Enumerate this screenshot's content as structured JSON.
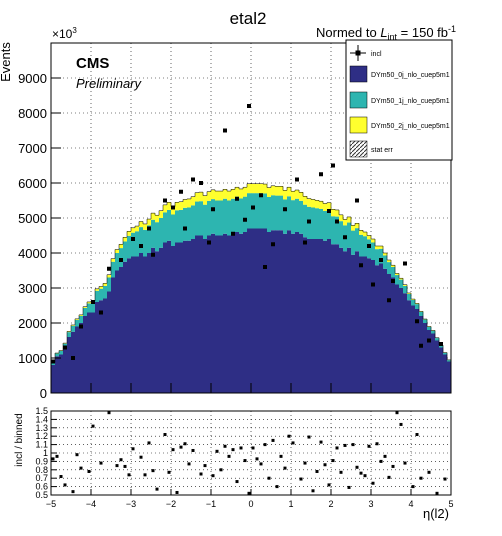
{
  "header": {
    "title": "etal2",
    "norm_prefix": "Normed to ",
    "norm_L": "L",
    "norm_sub": "int",
    "norm_value": " = 150 fb",
    "norm_sup": "-1"
  },
  "labels": {
    "cms": "CMS",
    "preliminary": "Preliminary",
    "multiplier_base": "×10",
    "multiplier_exp": "3"
  },
  "legend": [
    {
      "label": "incl",
      "kind": "marker"
    },
    {
      "label": "DYm50_0j_nlo_cuep5m1",
      "kind": "fill",
      "color": "#2e2e85"
    },
    {
      "label": "DYm50_1j_nlo_cuep5m1",
      "kind": "fill",
      "color": "#2db5b0"
    },
    {
      "label": "DYm50_2j_nlo_cuep5m1",
      "kind": "fill",
      "color": "#ffff2e"
    },
    {
      "label": "stat err",
      "kind": "hatch"
    }
  ],
  "chart_data": [
    {
      "type": "stacked-histogram",
      "ylabel": "Events",
      "y_multiplier": 1000,
      "ylim": [
        0,
        10000
      ],
      "y_ticks": [
        "0",
        "1000",
        "2000",
        "3000",
        "4000",
        "5000",
        "6000",
        "7000",
        "8000",
        "9000"
      ],
      "xlim": [
        -5,
        5
      ],
      "x_ticks": [
        "−5",
        "−4",
        "−3",
        "−2",
        "−1",
        "0",
        "1",
        "2",
        "3",
        "4",
        "5"
      ],
      "grid": true,
      "bins": 100,
      "series": [
        {
          "name": "DYm50_0j_nlo_cuep5m1",
          "color": "#2e2e85",
          "values": [
            800,
            1050,
            1100,
            1300,
            1600,
            1750,
            1900,
            2000,
            2200,
            2300,
            2300,
            2600,
            2650,
            2700,
            2900,
            3300,
            3500,
            3600,
            3750,
            3850,
            3900,
            3900,
            4000,
            3900,
            4000,
            4150,
            4050,
            4150,
            4300,
            4350,
            4200,
            4300,
            4300,
            4350,
            4350,
            4400,
            4500,
            4500,
            4400,
            4500,
            4550,
            4500,
            4500,
            4550,
            4500,
            4550,
            4600,
            4550,
            4600,
            4700,
            4700,
            4700,
            4700,
            4700,
            4600,
            4650,
            4650,
            4650,
            4550,
            4650,
            4550,
            4600,
            4550,
            4450,
            4400,
            4400,
            4400,
            4400,
            4350,
            4400,
            4250,
            4250,
            4150,
            4050,
            4150,
            3950,
            4050,
            3900,
            3900,
            3850,
            3800,
            3650,
            3700,
            3550,
            3400,
            3300,
            3100,
            3000,
            2850,
            2650,
            2500,
            2400,
            2200,
            2000,
            1800,
            1700,
            1500,
            1300,
            1100,
            900
          ]
        },
        {
          "name": "DYm50_1j_nlo_cuep5m1",
          "color": "#2db5b0",
          "values": [
            60,
            80,
            100,
            110,
            140,
            170,
            190,
            200,
            230,
            260,
            280,
            320,
            330,
            360,
            400,
            450,
            500,
            540,
            580,
            640,
            680,
            720,
            740,
            760,
            790,
            800,
            830,
            850,
            860,
            880,
            900,
            920,
            930,
            940,
            950,
            960,
            970,
            980,
            980,
            990,
            990,
            1000,
            1000,
            1000,
            1000,
            1000,
            1010,
            1010,
            1010,
            1010,
            1010,
            1010,
            1010,
            1000,
            1000,
            1000,
            990,
            990,
            980,
            970,
            960,
            950,
            940,
            930,
            920,
            900,
            880,
            860,
            850,
            830,
            800,
            790,
            760,
            740,
            720,
            690,
            660,
            620,
            580,
            540,
            500,
            460,
            420,
            380,
            340,
            300,
            270,
            240,
            210,
            180,
            160,
            140,
            120,
            100,
            90,
            80,
            70,
            60,
            50,
            40
          ]
        },
        {
          "name": "DYm50_2j_nlo_cuep5m1",
          "color": "#ffff2e",
          "values": [
            10,
            12,
            14,
            16,
            20,
            24,
            28,
            32,
            36,
            42,
            48,
            56,
            64,
            72,
            80,
            90,
            100,
            110,
            120,
            130,
            140,
            150,
            160,
            170,
            180,
            190,
            200,
            210,
            215,
            220,
            225,
            230,
            235,
            240,
            245,
            250,
            255,
            260,
            260,
            265,
            265,
            270,
            270,
            270,
            270,
            270,
            270,
            270,
            270,
            270,
            270,
            270,
            270,
            270,
            270,
            270,
            265,
            265,
            260,
            260,
            255,
            250,
            245,
            240,
            235,
            230,
            225,
            220,
            215,
            210,
            200,
            190,
            180,
            170,
            160,
            150,
            140,
            130,
            120,
            110,
            100,
            90,
            80,
            70,
            60,
            52,
            46,
            40,
            34,
            28,
            24,
            20,
            16,
            14,
            12,
            10,
            9,
            8,
            7,
            6
          ]
        }
      ],
      "incl_points": [
        {
          "x": -4.95,
          "y": 900
        },
        {
          "x": -4.65,
          "y": 1300
        },
        {
          "x": -4.25,
          "y": 1900
        },
        {
          "x": -3.95,
          "y": 2600
        },
        {
          "x": -3.55,
          "y": 3550
        },
        {
          "x": -3.25,
          "y": 3800
        },
        {
          "x": -2.95,
          "y": 4400
        },
        {
          "x": -2.75,
          "y": 4200
        },
        {
          "x": -2.45,
          "y": 3950
        },
        {
          "x": -2.15,
          "y": 5500
        },
        {
          "x": -1.95,
          "y": 5300
        },
        {
          "x": -1.75,
          "y": 5750
        },
        {
          "x": -1.45,
          "y": 6100
        },
        {
          "x": -1.25,
          "y": 6000
        },
        {
          "x": -0.95,
          "y": 5250
        },
        {
          "x": -0.65,
          "y": 7500
        },
        {
          "x": -0.35,
          "y": 5550
        },
        {
          "x": -0.05,
          "y": 8200
        },
        {
          "x": 0.25,
          "y": 5650
        },
        {
          "x": 0.55,
          "y": 4250
        },
        {
          "x": 0.85,
          "y": 5250
        },
        {
          "x": 1.15,
          "y": 6100
        },
        {
          "x": 1.45,
          "y": 4900
        },
        {
          "x": 1.75,
          "y": 6250
        },
        {
          "x": 2.05,
          "y": 6500
        },
        {
          "x": 2.35,
          "y": 4450
        },
        {
          "x": 2.65,
          "y": 5500
        },
        {
          "x": 2.95,
          "y": 4200
        },
        {
          "x": 3.25,
          "y": 3800
        },
        {
          "x": 3.55,
          "y": 3200
        },
        {
          "x": 3.85,
          "y": 3700
        },
        {
          "x": 4.15,
          "y": 2050
        },
        {
          "x": 4.45,
          "y": 1500
        },
        {
          "x": 4.75,
          "y": 1400
        },
        {
          "x": -2.55,
          "y": 4700
        },
        {
          "x": 1.95,
          "y": 5200
        },
        {
          "x": -0.15,
          "y": 4950
        },
        {
          "x": 0.05,
          "y": 5300
        },
        {
          "x": 3.05,
          "y": 3100
        },
        {
          "x": -3.75,
          "y": 2300
        },
        {
          "x": -1.05,
          "y": 4300
        },
        {
          "x": 0.35,
          "y": 3600
        },
        {
          "x": 1.35,
          "y": 4300
        },
        {
          "x": 2.75,
          "y": 3650
        },
        {
          "x": -4.45,
          "y": 1000
        },
        {
          "x": 4.25,
          "y": 1350
        },
        {
          "x": -1.65,
          "y": 4700
        },
        {
          "x": 2.15,
          "y": 4900
        },
        {
          "x": 3.45,
          "y": 2650
        },
        {
          "x": -0.45,
          "y": 4550
        }
      ]
    },
    {
      "type": "scatter",
      "ylabel": "incl / binned",
      "xlabel": "η(l2)",
      "ylim": [
        0.5,
        1.5
      ],
      "y_ticks": [
        "0.5",
        "0.6",
        "0.7",
        "0.8",
        "0.9",
        "1",
        "1.1",
        "1.2",
        "1.3",
        "1.4",
        "1.5"
      ],
      "xlim": [
        -5,
        5
      ],
      "x_ticks": [
        "−5",
        "−4",
        "−3",
        "−2",
        "−1",
        "0",
        "1",
        "2",
        "3",
        "4",
        "5"
      ],
      "grid": true,
      "points": [
        {
          "x": -4.95,
          "y": 0.93
        },
        {
          "x": -4.85,
          "y": 0.96
        },
        {
          "x": -4.75,
          "y": 0.72
        },
        {
          "x": -4.65,
          "y": 0.62
        },
        {
          "x": -4.45,
          "y": 0.54
        },
        {
          "x": -4.35,
          "y": 0.98
        },
        {
          "x": -4.25,
          "y": 0.82
        },
        {
          "x": -4.05,
          "y": 0.78
        },
        {
          "x": -3.95,
          "y": 1.32
        },
        {
          "x": -3.75,
          "y": 0.88
        },
        {
          "x": -3.55,
          "y": 1.48
        },
        {
          "x": -3.35,
          "y": 0.85
        },
        {
          "x": -3.25,
          "y": 0.92
        },
        {
          "x": -3.15,
          "y": 0.84
        },
        {
          "x": -3.05,
          "y": 0.74
        },
        {
          "x": -2.95,
          "y": 1.05
        },
        {
          "x": -2.75,
          "y": 0.95
        },
        {
          "x": -2.65,
          "y": 0.74
        },
        {
          "x": -2.55,
          "y": 1.12
        },
        {
          "x": -2.45,
          "y": 0.79
        },
        {
          "x": -2.35,
          "y": 0.57
        },
        {
          "x": -2.15,
          "y": 1.22
        },
        {
          "x": -2.05,
          "y": 0.77
        },
        {
          "x": -1.95,
          "y": 1.04
        },
        {
          "x": -1.85,
          "y": 0.53
        },
        {
          "x": -1.75,
          "y": 1.07
        },
        {
          "x": -1.65,
          "y": 1.11
        },
        {
          "x": -1.55,
          "y": 0.87
        },
        {
          "x": -1.45,
          "y": 1.03
        },
        {
          "x": -1.25,
          "y": 0.75
        },
        {
          "x": -1.15,
          "y": 0.85
        },
        {
          "x": -0.95,
          "y": 0.73
        },
        {
          "x": -0.85,
          "y": 1.02
        },
        {
          "x": -0.75,
          "y": 0.8
        },
        {
          "x": -0.65,
          "y": 1.08
        },
        {
          "x": -0.55,
          "y": 0.96
        },
        {
          "x": -0.45,
          "y": 1.04
        },
        {
          "x": -0.35,
          "y": 0.66
        },
        {
          "x": -0.25,
          "y": 1.06
        },
        {
          "x": -0.15,
          "y": 0.91
        },
        {
          "x": -0.05,
          "y": 0.52
        },
        {
          "x": 0.05,
          "y": 1.06
        },
        {
          "x": 0.15,
          "y": 0.93
        },
        {
          "x": 0.25,
          "y": 0.87
        },
        {
          "x": 0.35,
          "y": 1.1
        },
        {
          "x": 0.45,
          "y": 0.7
        },
        {
          "x": 0.55,
          "y": 1.15
        },
        {
          "x": 0.65,
          "y": 0.6
        },
        {
          "x": 0.75,
          "y": 0.96
        },
        {
          "x": 0.85,
          "y": 0.82
        },
        {
          "x": 0.95,
          "y": 1.2
        },
        {
          "x": 1.05,
          "y": 1.12
        },
        {
          "x": 1.25,
          "y": 0.69
        },
        {
          "x": 1.35,
          "y": 0.88
        },
        {
          "x": 1.45,
          "y": 1.19
        },
        {
          "x": 1.55,
          "y": 0.55
        },
        {
          "x": 1.65,
          "y": 0.78
        },
        {
          "x": 1.75,
          "y": 1.13
        },
        {
          "x": 1.85,
          "y": 0.86
        },
        {
          "x": 1.95,
          "y": 0.62
        },
        {
          "x": 2.05,
          "y": 0.91
        },
        {
          "x": 2.15,
          "y": 1.06
        },
        {
          "x": 2.25,
          "y": 0.77
        },
        {
          "x": 2.35,
          "y": 1.09
        },
        {
          "x": 2.45,
          "y": 0.59
        },
        {
          "x": 2.55,
          "y": 1.1
        },
        {
          "x": 2.65,
          "y": 0.83
        },
        {
          "x": 2.75,
          "y": 0.76
        },
        {
          "x": 2.85,
          "y": 0.73
        },
        {
          "x": 2.95,
          "y": 1.08
        },
        {
          "x": 3.05,
          "y": 0.64
        },
        {
          "x": 3.15,
          "y": 1.11
        },
        {
          "x": 3.25,
          "y": 0.9
        },
        {
          "x": 3.35,
          "y": 0.96
        },
        {
          "x": 3.45,
          "y": 0.71
        },
        {
          "x": 3.55,
          "y": 0.84
        },
        {
          "x": 3.65,
          "y": 1.48
        },
        {
          "x": 3.75,
          "y": 1.34
        },
        {
          "x": 3.85,
          "y": 0.88
        },
        {
          "x": 4.05,
          "y": 0.6
        },
        {
          "x": 4.15,
          "y": 1.22
        },
        {
          "x": 4.25,
          "y": 0.7
        },
        {
          "x": 4.45,
          "y": 0.77
        },
        {
          "x": 4.65,
          "y": 0.52
        },
        {
          "x": 4.85,
          "y": 0.69
        }
      ]
    }
  ]
}
